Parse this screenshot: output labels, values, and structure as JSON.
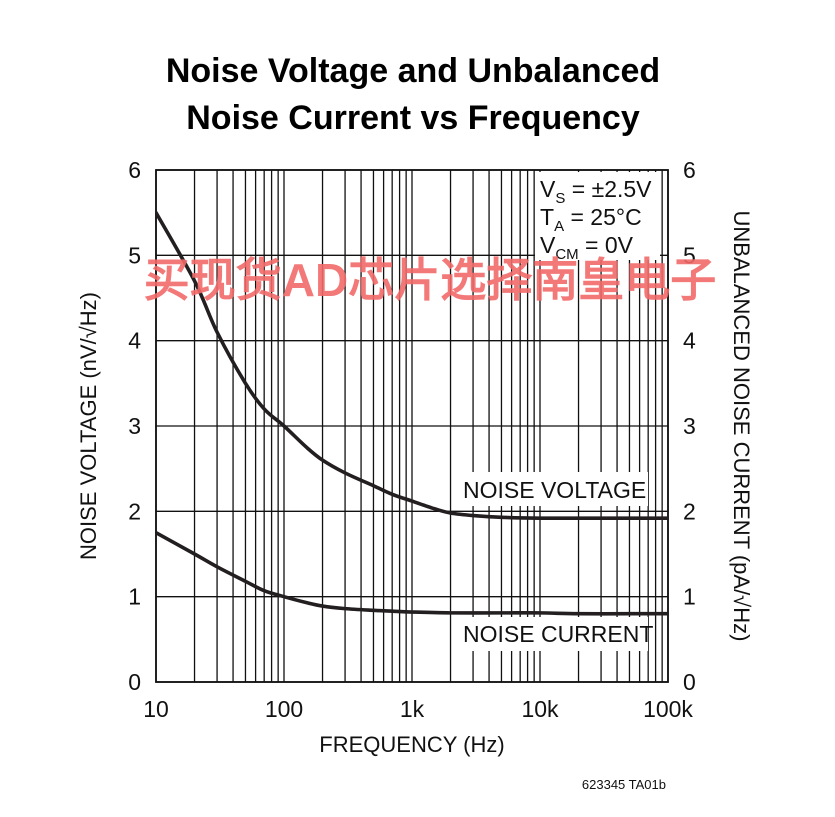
{
  "chart_data": {
    "type": "line",
    "title_lines": [
      "Noise Voltage and Unbalanced",
      "Noise Current vs Frequency"
    ],
    "xlabel": "FREQUENCY (Hz)",
    "ylabel": "NOISE VOLTAGE (nV/√Hz)",
    "y2label": "UNBALANCED NOISE CURRENT (pA/√Hz)",
    "x_scale": "log",
    "xlim": [
      10,
      100000
    ],
    "ylim": [
      0,
      6
    ],
    "y2lim": [
      0,
      6
    ],
    "x_ticks": [
      10,
      100,
      1000,
      10000,
      100000
    ],
    "x_tick_labels": [
      "10",
      "100",
      "1k",
      "10k",
      "100k"
    ],
    "y_ticks": [
      0,
      1,
      2,
      3,
      4,
      5,
      6
    ],
    "y_tick_labels": [
      "0",
      "1",
      "2",
      "3",
      "4",
      "5",
      "6"
    ],
    "y2_tick_labels": [
      "0",
      "1",
      "2",
      "3",
      "4",
      "5",
      "6"
    ],
    "grid": true,
    "conditions": [
      "VS = ±2.5V",
      "TA = 25°C",
      "VCM = 0V"
    ],
    "series": [
      {
        "name": "NOISE VOLTAGE",
        "x": [
          10,
          20,
          30,
          50,
          70,
          100,
          150,
          200,
          300,
          500,
          700,
          1000,
          1500,
          2000,
          3000,
          5000,
          10000,
          20000,
          50000,
          100000
        ],
        "y": [
          5.5,
          4.7,
          4.1,
          3.5,
          3.2,
          3.0,
          2.75,
          2.6,
          2.45,
          2.3,
          2.2,
          2.12,
          2.03,
          1.98,
          1.95,
          1.93,
          1.92,
          1.92,
          1.92,
          1.92
        ]
      },
      {
        "name": "NOISE CURRENT",
        "x": [
          10,
          20,
          30,
          50,
          70,
          100,
          150,
          200,
          300,
          500,
          700,
          1000,
          2000,
          5000,
          10000,
          20000,
          50000,
          100000
        ],
        "y": [
          1.75,
          1.5,
          1.35,
          1.18,
          1.07,
          1.0,
          0.93,
          0.89,
          0.86,
          0.84,
          0.83,
          0.82,
          0.81,
          0.81,
          0.81,
          0.8,
          0.8,
          0.8
        ]
      }
    ],
    "watermark": "买现货AD芯片选择南皇电子",
    "figure_code": "623345 TA01b"
  }
}
